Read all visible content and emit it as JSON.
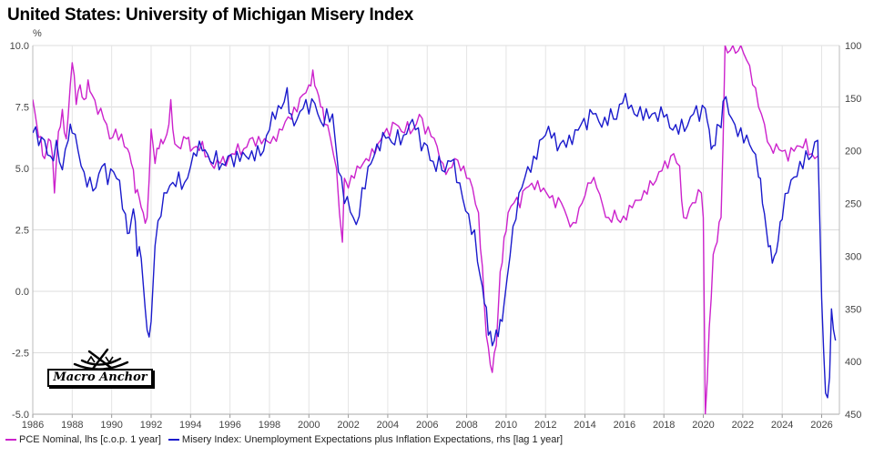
{
  "chart_data": {
    "type": "line",
    "title": "United States: University of Michigan Misery Index",
    "ylabel_left": "%",
    "x_ticks": [
      "1986",
      "1988",
      "1990",
      "1992",
      "1994",
      "1996",
      "1998",
      "2000",
      "2002",
      "2004",
      "2006",
      "2008",
      "2010",
      "2012",
      "2014",
      "2016",
      "2018",
      "2020",
      "2022",
      "2024",
      "2026"
    ],
    "xlim": [
      1986,
      2026.9
    ],
    "y_left": {
      "lim": [
        -5.0,
        10.0
      ],
      "ticks": [
        "10.0",
        "7.5",
        "5.0",
        "2.5",
        "0.0",
        "-2.5",
        "-5.0"
      ]
    },
    "y_right": {
      "lim": [
        450,
        100
      ],
      "inverted": true,
      "ticks": [
        "100",
        "150",
        "200",
        "250",
        "300",
        "350",
        "400",
        "450"
      ]
    },
    "series": [
      {
        "name": "PCE Nominal",
        "axis": "left",
        "color": "#cc22cc",
        "legend": "PCE Nominal, lhs [c.o.p. 1 year]",
        "points": [
          [
            1986.0,
            7.8
          ],
          [
            1986.2,
            6.8
          ],
          [
            1986.4,
            6.3
          ],
          [
            1986.6,
            5.4
          ],
          [
            1986.8,
            6.2
          ],
          [
            1987.0,
            5.5
          ],
          [
            1987.1,
            4.0
          ],
          [
            1987.3,
            6.5
          ],
          [
            1987.5,
            7.4
          ],
          [
            1987.7,
            6.2
          ],
          [
            1987.9,
            8.4
          ],
          [
            1988.0,
            9.3
          ],
          [
            1988.2,
            7.6
          ],
          [
            1988.4,
            8.4
          ],
          [
            1988.6,
            7.8
          ],
          [
            1988.8,
            8.6
          ],
          [
            1989.0,
            8.0
          ],
          [
            1989.3,
            7.2
          ],
          [
            1989.6,
            7.0
          ],
          [
            1989.9,
            6.2
          ],
          [
            1990.2,
            6.6
          ],
          [
            1990.5,
            6.4
          ],
          [
            1990.8,
            5.8
          ],
          [
            1991.0,
            5.2
          ],
          [
            1991.2,
            4.0
          ],
          [
            1991.4,
            3.8
          ],
          [
            1991.6,
            3.2
          ],
          [
            1991.8,
            3.0
          ],
          [
            1992.0,
            6.6
          ],
          [
            1992.2,
            5.2
          ],
          [
            1992.4,
            5.8
          ],
          [
            1992.6,
            6.0
          ],
          [
            1992.8,
            6.4
          ],
          [
            1993.0,
            7.8
          ],
          [
            1993.2,
            6.0
          ],
          [
            1993.5,
            5.8
          ],
          [
            1993.8,
            6.2
          ],
          [
            1994.0,
            5.7
          ],
          [
            1994.3,
            5.9
          ],
          [
            1994.6,
            6.1
          ],
          [
            1994.9,
            5.5
          ],
          [
            1995.2,
            5.0
          ],
          [
            1995.5,
            5.2
          ],
          [
            1995.8,
            5.1
          ],
          [
            1996.1,
            5.6
          ],
          [
            1996.4,
            6.0
          ],
          [
            1996.7,
            5.8
          ],
          [
            1997.0,
            6.2
          ],
          [
            1997.3,
            5.9
          ],
          [
            1997.6,
            6.0
          ],
          [
            1997.9,
            6.1
          ],
          [
            1998.2,
            6.3
          ],
          [
            1998.5,
            6.6
          ],
          [
            1998.8,
            6.9
          ],
          [
            1999.1,
            7.0
          ],
          [
            1999.4,
            7.3
          ],
          [
            1999.7,
            8.0
          ],
          [
            2000.0,
            8.4
          ],
          [
            2000.2,
            9.0
          ],
          [
            2000.4,
            8.2
          ],
          [
            2000.6,
            7.5
          ],
          [
            2000.8,
            6.8
          ],
          [
            2001.1,
            6.2
          ],
          [
            2001.4,
            5.0
          ],
          [
            2001.7,
            2.0
          ],
          [
            2001.8,
            4.6
          ],
          [
            2002.0,
            4.2
          ],
          [
            2002.3,
            4.6
          ],
          [
            2002.6,
            5.0
          ],
          [
            2002.9,
            5.4
          ],
          [
            2003.2,
            5.8
          ],
          [
            2003.5,
            6.0
          ],
          [
            2003.8,
            6.4
          ],
          [
            2004.1,
            6.3
          ],
          [
            2004.4,
            6.8
          ],
          [
            2004.7,
            6.5
          ],
          [
            2005.0,
            6.9
          ],
          [
            2005.3,
            6.6
          ],
          [
            2005.6,
            7.2
          ],
          [
            2005.9,
            6.4
          ],
          [
            2006.2,
            6.3
          ],
          [
            2006.5,
            5.9
          ],
          [
            2006.8,
            5.2
          ],
          [
            2007.1,
            5.0
          ],
          [
            2007.4,
            5.4
          ],
          [
            2007.7,
            4.9
          ],
          [
            2008.0,
            4.6
          ],
          [
            2008.3,
            4.2
          ],
          [
            2008.6,
            3.2
          ],
          [
            2008.8,
            1.0
          ],
          [
            2009.0,
            -1.8
          ],
          [
            2009.2,
            -3.0
          ],
          [
            2009.3,
            -3.3
          ],
          [
            2009.5,
            -2.2
          ],
          [
            2009.7,
            0.8
          ],
          [
            2009.9,
            2.2
          ],
          [
            2010.1,
            3.2
          ],
          [
            2010.4,
            3.6
          ],
          [
            2010.7,
            3.4
          ],
          [
            2011.0,
            4.2
          ],
          [
            2011.3,
            4.4
          ],
          [
            2011.6,
            4.5
          ],
          [
            2011.9,
            4.2
          ],
          [
            2012.2,
            3.8
          ],
          [
            2012.5,
            3.4
          ],
          [
            2012.8,
            3.6
          ],
          [
            2013.1,
            3.0
          ],
          [
            2013.4,
            2.8
          ],
          [
            2013.7,
            3.4
          ],
          [
            2014.0,
            3.9
          ],
          [
            2014.3,
            4.4
          ],
          [
            2014.6,
            4.2
          ],
          [
            2014.9,
            3.5
          ],
          [
            2015.2,
            3.0
          ],
          [
            2015.5,
            3.3
          ],
          [
            2015.8,
            2.8
          ],
          [
            2016.1,
            2.9
          ],
          [
            2016.4,
            3.4
          ],
          [
            2016.7,
            3.7
          ],
          [
            2017.0,
            4.1
          ],
          [
            2017.3,
            4.5
          ],
          [
            2017.6,
            4.5
          ],
          [
            2017.9,
            4.9
          ],
          [
            2018.2,
            5.0
          ],
          [
            2018.5,
            5.6
          ],
          [
            2018.8,
            5.1
          ],
          [
            2019.0,
            3.0
          ],
          [
            2019.3,
            3.4
          ],
          [
            2019.6,
            3.6
          ],
          [
            2019.9,
            4.0
          ],
          [
            2020.0,
            3.0
          ],
          [
            2020.1,
            -5.0
          ],
          [
            2020.3,
            -1.5
          ],
          [
            2020.5,
            1.5
          ],
          [
            2020.7,
            2.0
          ],
          [
            2020.9,
            3.0
          ],
          [
            2021.0,
            6.0
          ],
          [
            2021.1,
            10.0
          ],
          [
            2021.5,
            10.0
          ],
          [
            2021.9,
            10.0
          ],
          [
            2022.2,
            9.4
          ],
          [
            2022.5,
            8.4
          ],
          [
            2022.8,
            7.5
          ],
          [
            2023.1,
            6.8
          ],
          [
            2023.4,
            5.9
          ],
          [
            2023.7,
            6.0
          ],
          [
            2024.0,
            5.7
          ],
          [
            2024.3,
            5.3
          ],
          [
            2024.6,
            5.7
          ],
          [
            2024.9,
            5.9
          ],
          [
            2025.2,
            6.2
          ],
          [
            2025.5,
            5.6
          ],
          [
            2025.8,
            5.5
          ]
        ]
      },
      {
        "name": "Misery Index",
        "axis": "right",
        "color": "#1a1acc",
        "legend": "Misery Index: Unemployment Expectations plus Inflation Expectations, rhs [lag 1 year]",
        "points": [
          [
            1986.0,
            183
          ],
          [
            1986.3,
            195
          ],
          [
            1986.6,
            190
          ],
          [
            1986.9,
            205
          ],
          [
            1987.2,
            190
          ],
          [
            1987.5,
            218
          ],
          [
            1987.8,
            190
          ],
          [
            1988.0,
            183
          ],
          [
            1988.3,
            200
          ],
          [
            1988.6,
            220
          ],
          [
            1988.9,
            225
          ],
          [
            1989.2,
            235
          ],
          [
            1989.5,
            215
          ],
          [
            1989.8,
            232
          ],
          [
            1990.1,
            220
          ],
          [
            1990.4,
            228
          ],
          [
            1990.7,
            260
          ],
          [
            1990.9,
            278
          ],
          [
            1991.1,
            255
          ],
          [
            1991.3,
            300
          ],
          [
            1991.5,
            302
          ],
          [
            1991.7,
            350
          ],
          [
            1991.8,
            370
          ],
          [
            1992.0,
            362
          ],
          [
            1992.2,
            290
          ],
          [
            1992.5,
            262
          ],
          [
            1992.8,
            240
          ],
          [
            1993.1,
            230
          ],
          [
            1993.4,
            220
          ],
          [
            1993.7,
            230
          ],
          [
            1994.0,
            215
          ],
          [
            1994.3,
            205
          ],
          [
            1994.6,
            200
          ],
          [
            1995.0,
            210
          ],
          [
            1995.3,
            200
          ],
          [
            1995.6,
            212
          ],
          [
            1995.9,
            205
          ],
          [
            1996.2,
            215
          ],
          [
            1996.5,
            210
          ],
          [
            1996.8,
            205
          ],
          [
            1997.1,
            200
          ],
          [
            1997.4,
            195
          ],
          [
            1997.7,
            200
          ],
          [
            1998.0,
            180
          ],
          [
            1998.3,
            170
          ],
          [
            1998.6,
            160
          ],
          [
            1998.9,
            140
          ],
          [
            1999.1,
            165
          ],
          [
            1999.4,
            170
          ],
          [
            1999.7,
            160
          ],
          [
            2000.0,
            165
          ],
          [
            2000.3,
            155
          ],
          [
            2000.6,
            172
          ],
          [
            2000.9,
            160
          ],
          [
            2001.2,
            165
          ],
          [
            2001.5,
            220
          ],
          [
            2001.8,
            250
          ],
          [
            2002.1,
            258
          ],
          [
            2002.4,
            270
          ],
          [
            2002.7,
            235
          ],
          [
            2003.0,
            215
          ],
          [
            2003.3,
            205
          ],
          [
            2003.6,
            200
          ],
          [
            2003.9,
            188
          ],
          [
            2004.2,
            192
          ],
          [
            2004.5,
            180
          ],
          [
            2004.8,
            185
          ],
          [
            2005.1,
            175
          ],
          [
            2005.4,
            180
          ],
          [
            2005.7,
            200
          ],
          [
            2006.0,
            195
          ],
          [
            2006.3,
            210
          ],
          [
            2006.6,
            205
          ],
          [
            2006.9,
            220
          ],
          [
            2007.2,
            210
          ],
          [
            2007.5,
            230
          ],
          [
            2007.8,
            245
          ],
          [
            2008.1,
            260
          ],
          [
            2008.4,
            275
          ],
          [
            2008.7,
            320
          ],
          [
            2008.9,
            345
          ],
          [
            2009.1,
            375
          ],
          [
            2009.3,
            385
          ],
          [
            2009.5,
            370
          ],
          [
            2009.7,
            360
          ],
          [
            2009.9,
            345
          ],
          [
            2010.2,
            300
          ],
          [
            2010.5,
            265
          ],
          [
            2010.8,
            235
          ],
          [
            2011.1,
            215
          ],
          [
            2011.4,
            205
          ],
          [
            2011.7,
            190
          ],
          [
            2012.0,
            185
          ],
          [
            2012.3,
            188
          ],
          [
            2012.6,
            200
          ],
          [
            2012.9,
            190
          ],
          [
            2013.2,
            185
          ],
          [
            2013.5,
            180
          ],
          [
            2013.8,
            175
          ],
          [
            2014.1,
            180
          ],
          [
            2014.4,
            165
          ],
          [
            2014.7,
            172
          ],
          [
            2015.0,
            168
          ],
          [
            2015.3,
            160
          ],
          [
            2015.6,
            170
          ],
          [
            2015.9,
            155
          ],
          [
            2016.2,
            160
          ],
          [
            2016.5,
            165
          ],
          [
            2016.8,
            158
          ],
          [
            2017.1,
            160
          ],
          [
            2017.4,
            165
          ],
          [
            2017.7,
            172
          ],
          [
            2018.0,
            168
          ],
          [
            2018.3,
            178
          ],
          [
            2018.6,
            175
          ],
          [
            2018.9,
            170
          ],
          [
            2019.2,
            176
          ],
          [
            2019.5,
            165
          ],
          [
            2019.8,
            172
          ],
          [
            2020.1,
            160
          ],
          [
            2020.3,
            180
          ],
          [
            2020.5,
            195
          ],
          [
            2020.7,
            175
          ],
          [
            2020.9,
            178
          ],
          [
            2021.0,
            153
          ],
          [
            2021.3,
            165
          ],
          [
            2021.6,
            175
          ],
          [
            2021.9,
            178
          ],
          [
            2022.2,
            185
          ],
          [
            2022.5,
            200
          ],
          [
            2022.8,
            225
          ],
          [
            2023.0,
            250
          ],
          [
            2023.2,
            275
          ],
          [
            2023.4,
            290
          ],
          [
            2023.6,
            300
          ],
          [
            2023.8,
            285
          ],
          [
            2024.0,
            265
          ],
          [
            2024.3,
            240
          ],
          [
            2024.6,
            225
          ],
          [
            2024.9,
            210
          ],
          [
            2025.2,
            200
          ],
          [
            2025.5,
            205
          ],
          [
            2025.8,
            190
          ],
          [
            2025.9,
            260
          ],
          [
            2026.0,
            340
          ],
          [
            2026.2,
            430
          ],
          [
            2026.4,
            415
          ],
          [
            2026.5,
            350
          ],
          [
            2026.6,
            370
          ],
          [
            2026.7,
            380
          ]
        ]
      }
    ],
    "grid": true,
    "legend_position": "bottom"
  },
  "logo": {
    "text": "Macro Anchor"
  }
}
